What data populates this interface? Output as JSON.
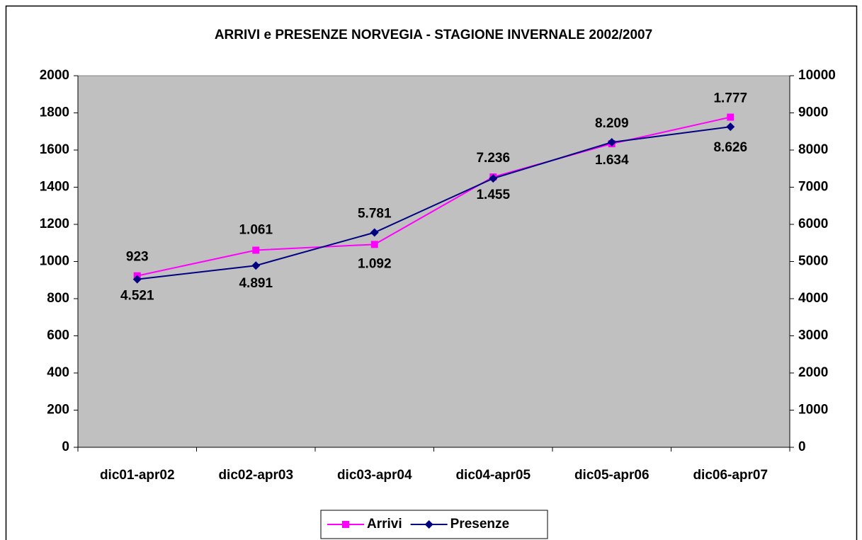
{
  "chart_data": {
    "type": "line",
    "title": "ARRIVI e PRESENZE NORVEGIA - STAGIONE INVERNALE 2002/2007",
    "categories": [
      "dic01-apr02",
      "dic02-apr03",
      "dic03-apr04",
      "dic04-apr05",
      "dic05-apr06",
      "dic06-apr07"
    ],
    "series": [
      {
        "name": "Arrivi",
        "color": "#ff00ff",
        "values": [
          923,
          1061,
          1092,
          1455,
          1634,
          1777
        ],
        "value_labels": [
          "923",
          "1.061",
          "1.092",
          "1.455",
          "1.634",
          "1.777"
        ]
      },
      {
        "name": "Presenze",
        "color": "#000080",
        "axis": "y2",
        "values": [
          4521,
          4891,
          5781,
          7236,
          8209,
          8626
        ],
        "value_labels": [
          "4.521",
          "4.891",
          "5.781",
          "7.236",
          "8.209",
          "8.626"
        ]
      }
    ],
    "ylim": [
      0,
      2000
    ],
    "yticks": [
      0,
      200,
      400,
      600,
      800,
      1000,
      1200,
      1400,
      1600,
      1800,
      2000
    ],
    "y2lim": [
      0,
      10000
    ],
    "y2ticks": [
      0,
      1000,
      2000,
      3000,
      4000,
      5000,
      6000,
      7000,
      8000,
      9000,
      10000
    ],
    "plot_background": "#c0c0c0",
    "legend": "bottom"
  }
}
